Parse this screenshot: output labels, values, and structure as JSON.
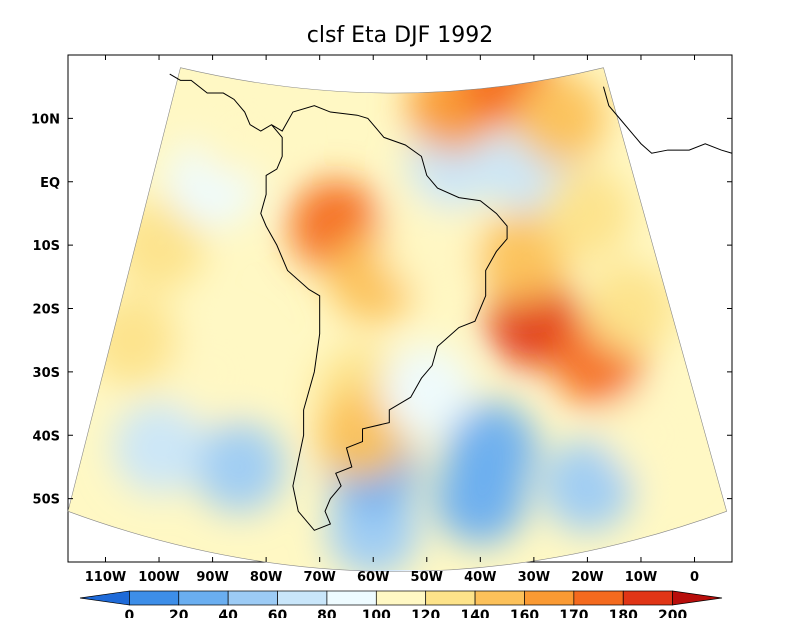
{
  "chart_data": {
    "type": "heatmap",
    "title": "clsf Eta DJF 1992",
    "variable": "clsf",
    "model": "Eta",
    "season": "DJF",
    "year": "1992",
    "xlabel": "",
    "ylabel": "",
    "xlim": [
      -117,
      7
    ],
    "ylim": [
      -60,
      20
    ],
    "x_ticks": [
      {
        "value": -110,
        "label": "110W"
      },
      {
        "value": -100,
        "label": "100W"
      },
      {
        "value": -90,
        "label": "90W"
      },
      {
        "value": -80,
        "label": "80W"
      },
      {
        "value": -70,
        "label": "70W"
      },
      {
        "value": -60,
        "label": "60W"
      },
      {
        "value": -50,
        "label": "50W"
      },
      {
        "value": -40,
        "label": "40W"
      },
      {
        "value": -30,
        "label": "30W"
      },
      {
        "value": -20,
        "label": "20W"
      },
      {
        "value": -10,
        "label": "10W"
      },
      {
        "value": 0,
        "label": "0"
      }
    ],
    "y_ticks": [
      {
        "value": 10,
        "label": "10N"
      },
      {
        "value": 0,
        "label": "EQ"
      },
      {
        "value": -10,
        "label": "10S"
      },
      {
        "value": -20,
        "label": "20S"
      },
      {
        "value": -30,
        "label": "30S"
      },
      {
        "value": -40,
        "label": "40S"
      },
      {
        "value": -50,
        "label": "50S"
      }
    ],
    "colorbar": {
      "levels": [
        "0",
        "20",
        "40",
        "60",
        "80",
        "100",
        "120",
        "140",
        "160",
        "170",
        "180",
        "200"
      ],
      "colors": [
        "#1e6ad8",
        "#3d8ee8",
        "#6aaef0",
        "#9ccbf5",
        "#c9e6fa",
        "#eefbff",
        "#fff8c4",
        "#fde38a",
        "#fcc15a",
        "#fa9a33",
        "#f46a1e",
        "#e03516",
        "#b80e0b"
      ]
    },
    "field_regions": [
      {
        "lon": -60,
        "lat": -55,
        "value": 45
      },
      {
        "lon": -40,
        "lat": -50,
        "value": 30
      },
      {
        "lon": -20,
        "lat": -48,
        "value": 40
      },
      {
        "lon": -60,
        "lat": -45,
        "value": 35
      },
      {
        "lon": -85,
        "lat": -45,
        "value": 55
      },
      {
        "lon": -100,
        "lat": -42,
        "value": 65
      },
      {
        "lon": -38,
        "lat": -42,
        "value": 35
      },
      {
        "lon": -90,
        "lat": -30,
        "value": 105
      },
      {
        "lon": -105,
        "lat": -25,
        "value": 130
      },
      {
        "lon": -100,
        "lat": -10,
        "value": 125
      },
      {
        "lon": -90,
        "lat": 0,
        "value": 90
      },
      {
        "lon": -85,
        "lat": 8,
        "value": 100
      },
      {
        "lon": -62,
        "lat": -33,
        "value": 120
      },
      {
        "lon": -62,
        "lat": -40,
        "value": 150
      },
      {
        "lon": -67,
        "lat": -7,
        "value": 175
      },
      {
        "lon": -60,
        "lat": -15,
        "value": 155
      },
      {
        "lon": -50,
        "lat": -10,
        "value": 110
      },
      {
        "lon": -45,
        "lat": 3,
        "value": 60
      },
      {
        "lon": -30,
        "lat": 2,
        "value": 70
      },
      {
        "lon": -45,
        "lat": 12,
        "value": 165
      },
      {
        "lon": -35,
        "lat": 16,
        "value": 170
      },
      {
        "lon": -25,
        "lat": 10,
        "value": 140
      },
      {
        "lon": -30,
        "lat": -22,
        "value": 185
      },
      {
        "lon": -18,
        "lat": -28,
        "value": 175
      },
      {
        "lon": -32,
        "lat": -12,
        "value": 150
      },
      {
        "lon": -12,
        "lat": -20,
        "value": 130
      },
      {
        "lon": -20,
        "lat": -5,
        "value": 120
      },
      {
        "lon": -8,
        "lat": -40,
        "value": 110
      },
      {
        "lon": -50,
        "lat": -33,
        "value": 90
      }
    ]
  }
}
